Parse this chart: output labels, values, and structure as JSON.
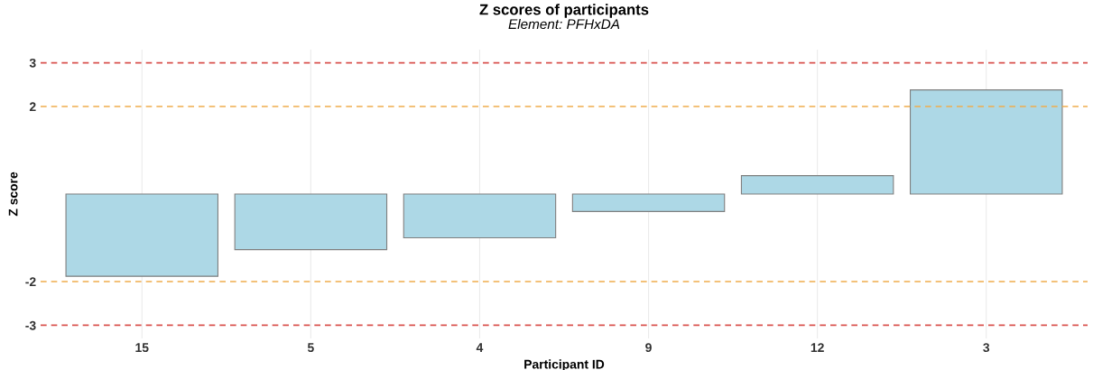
{
  "chart_data": {
    "type": "bar",
    "title": "Z scores of participants",
    "subtitle": "Element: PFHxDA",
    "xlabel": "Participant ID",
    "ylabel": "Z score",
    "categories": [
      "15",
      "5",
      "4",
      "9",
      "12",
      "3"
    ],
    "values": [
      -1.88,
      -1.27,
      -1.0,
      -0.4,
      0.42,
      2.38
    ],
    "color": "#add8e6",
    "ylim": [
      -3.3,
      3.3
    ],
    "yticks": [
      -3,
      -2,
      2,
      3
    ],
    "grid": "x",
    "ref_lines": [
      {
        "axis": "y",
        "value": 3,
        "color": "#d9534f",
        "line_style": "dashed"
      },
      {
        "axis": "y",
        "value": 2,
        "color": "#f0ad4e",
        "line_style": "dashed"
      },
      {
        "axis": "y",
        "value": -2,
        "color": "#f0ad4e",
        "line_style": "dashed"
      },
      {
        "axis": "y",
        "value": -3,
        "color": "#d9534f",
        "line_style": "dashed"
      }
    ]
  }
}
